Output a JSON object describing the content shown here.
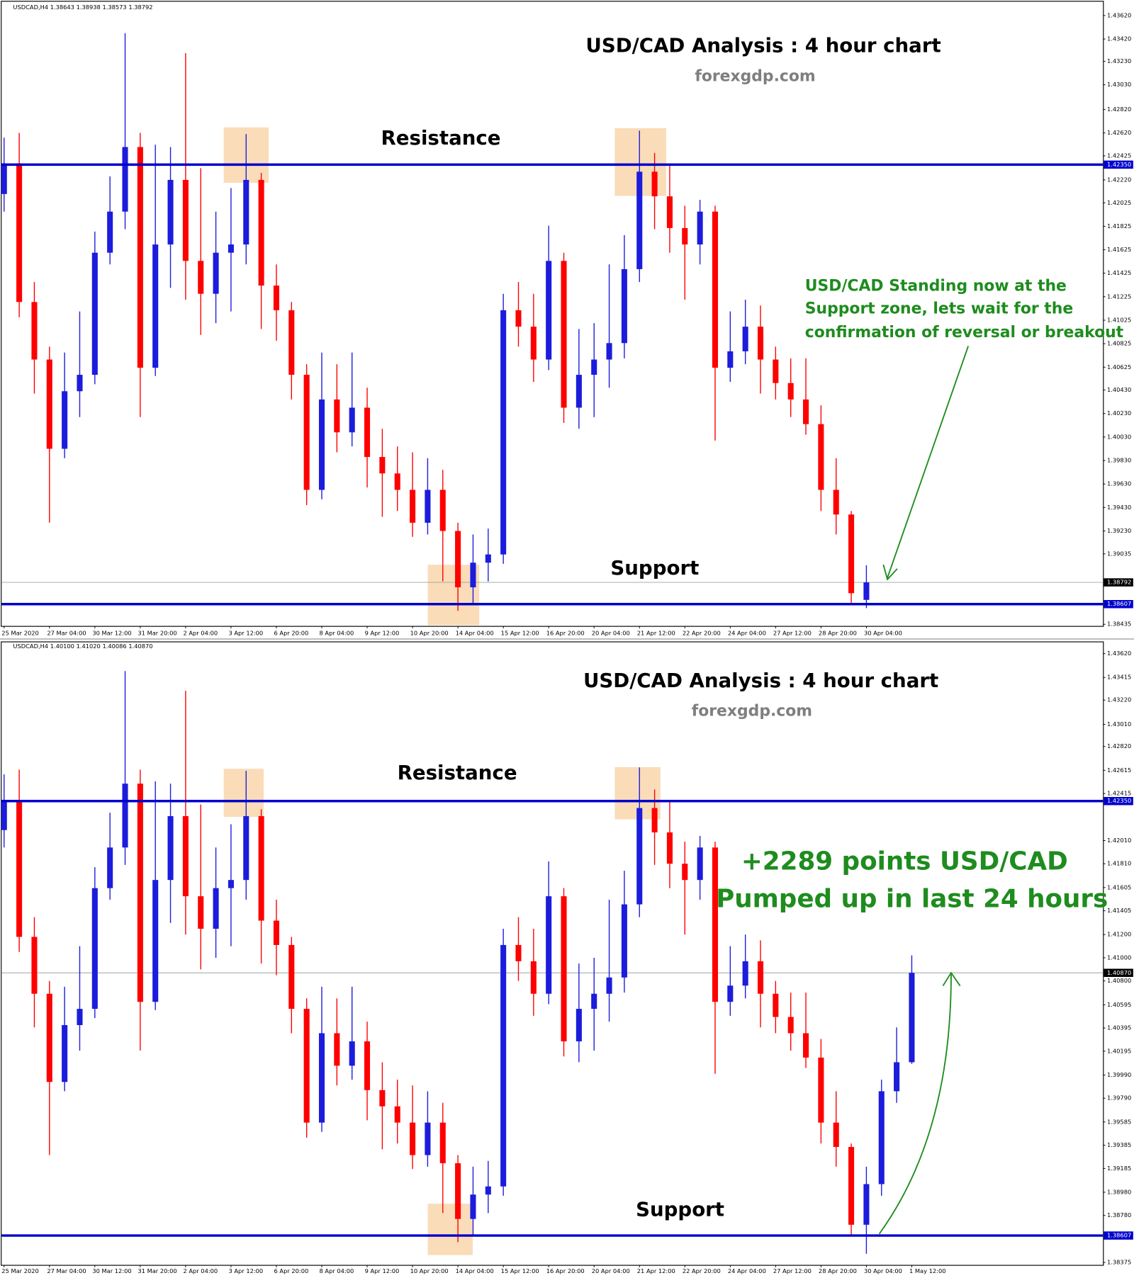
{
  "chart_data": [
    {
      "type": "candlestick",
      "header": "USDCAD,H4  1.38643 1.38938 1.38573 1.38792",
      "title": "USD/CAD Analysis : 4 hour chart",
      "subtitle": "forexgdp.com",
      "resistance_label": "Resistance",
      "support_label": "Support",
      "annotation": [
        "USD/CAD Standing now at the",
        "Support zone, lets wait for the",
        "confirmation of reversal or breakout"
      ],
      "up_color": "#1c1cdc",
      "down_color": "#ff0000",
      "level_color": "#0000cc",
      "ylim": [
        1.38421,
        1.43738
      ],
      "yticks": [
        {
          "value": 1.4362,
          "label": "1.43620"
        },
        {
          "value": 1.4342,
          "label": "1.43420"
        },
        {
          "value": 1.4323,
          "label": "1.43230"
        },
        {
          "value": 1.4303,
          "label": "1.43030"
        },
        {
          "value": 1.4282,
          "label": "1.42820"
        },
        {
          "value": 1.4262,
          "label": "1.42620"
        },
        1.42425,
        {
          "value": 1.4222,
          "label": "1.42220"
        },
        1.42025,
        1.41825,
        1.41625,
        1.41425,
        1.41225,
        1.41025,
        1.40825,
        1.40625,
        {
          "value": 1.4043,
          "label": "1.40430"
        },
        {
          "value": 1.4023,
          "label": "1.40230"
        },
        {
          "value": 1.4003,
          "label": "1.40030"
        },
        {
          "value": 1.3983,
          "label": "1.39830"
        },
        {
          "value": 1.3963,
          "label": "1.39630"
        },
        {
          "value": 1.3943,
          "label": "1.39430"
        },
        {
          "value": 1.3923,
          "label": "1.39230"
        },
        1.39035,
        1.38435
      ],
      "levels": [
        {
          "value": 1.4235,
          "label": "1.42350"
        },
        {
          "value": 1.38607,
          "label": "1.38607"
        }
      ],
      "price_line": {
        "value": 1.38792,
        "label": "1.38792"
      },
      "categories": [
        "25 Mar 2020",
        null,
        null,
        "27 Mar 04:00",
        null,
        null,
        "30 Mar 12:00",
        null,
        null,
        "31 Mar 20:00",
        null,
        null,
        "2 Apr 04:00",
        null,
        null,
        "3 Apr 12:00",
        null,
        null,
        "6 Apr 20:00",
        null,
        null,
        "8 Apr 04:00",
        null,
        null,
        "9 Apr 12:00",
        null,
        null,
        "10 Apr 20:00",
        null,
        null,
        "14 Apr 04:00",
        null,
        null,
        "15 Apr 12:00",
        null,
        null,
        "16 Apr 20:00",
        null,
        null,
        "20 Apr 04:00",
        null,
        null,
        "21 Apr 12:00",
        null,
        null,
        "22 Apr 20:00",
        null,
        null,
        "24 Apr 04:00",
        null,
        null,
        "27 Apr 12:00",
        null,
        null,
        "28 Apr 20:00",
        null,
        null,
        "30 Apr 04:00"
      ],
      "open": [
        1.421,
        1.4236,
        1.4118,
        1.4069,
        1.3993,
        1.4042,
        1.4056,
        1.416,
        1.4195,
        1.425,
        1.4062,
        1.4167,
        1.4222,
        1.4153,
        1.4125,
        1.416,
        1.4167,
        1.4222,
        1.4132,
        1.4111,
        1.4056,
        1.3958,
        1.4035,
        1.4007,
        1.4028,
        1.3986,
        1.3972,
        1.3958,
        1.393,
        1.3958,
        1.3923,
        1.3875,
        1.3896,
        1.3903,
        1.4111,
        1.4097,
        1.4069,
        1.4153,
        1.4028,
        1.4056,
        1.4069,
        1.4083,
        1.4146,
        1.4229,
        1.4208,
        1.4181,
        1.4167,
        1.4195,
        1.4062,
        1.4076,
        1.4097,
        1.4069,
        1.4049,
        1.4035,
        1.4014,
        1.3958,
        1.3937,
        1.38643
      ],
      "high": [
        1.4258,
        1.4262,
        1.4135,
        1.408,
        1.4075,
        1.411,
        1.4178,
        1.4225,
        1.4347,
        1.4262,
        1.4252,
        1.425,
        1.433,
        1.4232,
        1.4195,
        1.4215,
        1.4261,
        1.4228,
        1.415,
        1.4118,
        1.4065,
        1.4075,
        1.4065,
        1.4075,
        1.4045,
        1.401,
        1.3995,
        1.399,
        1.3985,
        1.3975,
        1.393,
        1.392,
        1.3925,
        1.4125,
        1.4135,
        1.4125,
        1.4183,
        1.416,
        1.4095,
        1.41,
        1.415,
        1.4175,
        1.4264,
        1.4245,
        1.4236,
        1.42,
        1.4205,
        1.42,
        1.411,
        1.412,
        1.4115,
        1.408,
        1.407,
        1.407,
        1.403,
        1.3985,
        1.394,
        1.38938
      ],
      "low": [
        1.4195,
        1.4105,
        1.404,
        1.393,
        1.3985,
        1.402,
        1.4048,
        1.415,
        1.418,
        1.402,
        1.4055,
        1.413,
        1.412,
        1.409,
        1.41,
        1.411,
        1.415,
        1.4095,
        1.4085,
        1.4035,
        1.3945,
        1.395,
        1.399,
        1.3995,
        1.396,
        1.3935,
        1.394,
        1.3918,
        1.392,
        1.388,
        1.3855,
        1.386,
        1.388,
        1.3895,
        1.408,
        1.405,
        1.406,
        1.4015,
        1.401,
        1.402,
        1.4045,
        1.407,
        1.4135,
        1.418,
        1.416,
        1.412,
        1.415,
        1.4,
        1.405,
        1.4065,
        1.404,
        1.4035,
        1.402,
        1.4005,
        1.394,
        1.392,
        1.386,
        1.38573
      ],
      "close": [
        1.4236,
        1.4118,
        1.4069,
        1.3993,
        1.4042,
        1.4056,
        1.416,
        1.4195,
        1.425,
        1.4062,
        1.4167,
        1.4222,
        1.4153,
        1.4125,
        1.416,
        1.4167,
        1.4222,
        1.4132,
        1.4111,
        1.4056,
        1.3958,
        1.4035,
        1.4007,
        1.4028,
        1.3986,
        1.3972,
        1.3958,
        1.393,
        1.3958,
        1.3923,
        1.3875,
        1.3896,
        1.3903,
        1.4111,
        1.4097,
        1.4069,
        1.4153,
        1.4028,
        1.4056,
        1.4069,
        1.4083,
        1.4146,
        1.4229,
        1.4208,
        1.4181,
        1.4167,
        1.4195,
        1.4062,
        1.4076,
        1.4097,
        1.4069,
        1.4049,
        1.4035,
        1.4014,
        1.3958,
        1.3937,
        1.387,
        1.38792
      ]
    },
    {
      "type": "candlestick",
      "header": "USDCAD,H4  1.40100 1.41020 1.40086 1.40870",
      "title": "USD/CAD Analysis : 4 hour chart",
      "subtitle": "forexgdp.com",
      "resistance_label": "Resistance",
      "support_label": "Support",
      "annotation": [
        "+2289 points USD/CAD",
        "Pumped up in last 24 hours"
      ],
      "up_color": "#1c1cdc",
      "down_color": "#ff0000",
      "level_color": "#0000cc",
      "ylim": [
        1.38354,
        1.43718
      ],
      "yticks": [
        {
          "value": 1.4362,
          "label": "1.43620"
        },
        1.43415,
        {
          "value": 1.4322,
          "label": "1.43220"
        },
        {
          "value": 1.4301,
          "label": "1.43010"
        },
        {
          "value": 1.4282,
          "label": "1.42820"
        },
        1.42615,
        1.42415,
        {
          "value": 1.4201,
          "label": "1.42010"
        },
        {
          "value": 1.4181,
          "label": "1.41810"
        },
        1.41605,
        1.41405,
        {
          "value": 1.412,
          "label": "1.41200"
        },
        {
          "value": 1.41,
          "label": "1.41000"
        },
        {
          "value": 1.408,
          "label": "1.40800"
        },
        1.40595,
        1.40395,
        1.40195,
        {
          "value": 1.3999,
          "label": "1.39990"
        },
        {
          "value": 1.3979,
          "label": "1.39790"
        },
        1.39585,
        1.39385,
        1.39185,
        {
          "value": 1.3898,
          "label": "1.38980"
        },
        {
          "value": 1.3878,
          "label": "1.38780"
        },
        1.38375
      ],
      "levels": [
        {
          "value": 1.4235,
          "label": "1.42350"
        },
        {
          "value": 1.38607,
          "label": "1.38607"
        }
      ],
      "price_line": {
        "value": 1.4087,
        "label": "1.40870"
      },
      "categories": [
        "25 Mar 2020",
        null,
        null,
        "27 Mar 04:00",
        null,
        null,
        "30 Mar 12:00",
        null,
        null,
        "31 Mar 20:00",
        null,
        null,
        "2 Apr 04:00",
        null,
        null,
        "3 Apr 12:00",
        null,
        null,
        "6 Apr 20:00",
        null,
        null,
        "8 Apr 04:00",
        null,
        null,
        "9 Apr 12:00",
        null,
        null,
        "10 Apr 20:00",
        null,
        null,
        "14 Apr 04:00",
        null,
        null,
        "15 Apr 12:00",
        null,
        null,
        "16 Apr 20:00",
        null,
        null,
        "20 Apr 04:00",
        null,
        null,
        "21 Apr 12:00",
        null,
        null,
        "22 Apr 20:00",
        null,
        null,
        "24 Apr 04:00",
        null,
        null,
        "27 Apr 12:00",
        null,
        null,
        "28 Apr 20:00",
        null,
        null,
        "30 Apr 04:00",
        null,
        null,
        "1 May 12:00"
      ],
      "open": [
        1.421,
        1.4236,
        1.4118,
        1.4069,
        1.3993,
        1.4042,
        1.4056,
        1.416,
        1.4195,
        1.425,
        1.4062,
        1.4167,
        1.4222,
        1.4153,
        1.4125,
        1.416,
        1.4167,
        1.4222,
        1.4132,
        1.4111,
        1.4056,
        1.3958,
        1.4035,
        1.4007,
        1.4028,
        1.3986,
        1.3972,
        1.3958,
        1.393,
        1.3958,
        1.3923,
        1.3875,
        1.3896,
        1.3903,
        1.4111,
        1.4097,
        1.4069,
        1.4153,
        1.4028,
        1.4056,
        1.4069,
        1.4083,
        1.4146,
        1.4229,
        1.4208,
        1.4181,
        1.4167,
        1.4195,
        1.4062,
        1.4076,
        1.4097,
        1.4069,
        1.4049,
        1.4035,
        1.4014,
        1.3958,
        1.3937,
        1.387,
        1.3905,
        1.3985,
        1.401
      ],
      "high": [
        1.4258,
        1.4262,
        1.4135,
        1.408,
        1.4075,
        1.411,
        1.4178,
        1.4225,
        1.4347,
        1.4262,
        1.4252,
        1.425,
        1.433,
        1.4232,
        1.4195,
        1.4215,
        1.4261,
        1.4228,
        1.415,
        1.4118,
        1.4065,
        1.4075,
        1.4065,
        1.4075,
        1.4045,
        1.401,
        1.3995,
        1.399,
        1.3985,
        1.3975,
        1.393,
        1.392,
        1.3925,
        1.4125,
        1.4135,
        1.4125,
        1.4183,
        1.416,
        1.4095,
        1.41,
        1.415,
        1.4175,
        1.4264,
        1.4245,
        1.4236,
        1.42,
        1.4205,
        1.42,
        1.411,
        1.412,
        1.4115,
        1.408,
        1.407,
        1.407,
        1.403,
        1.3985,
        1.394,
        1.392,
        1.3995,
        1.404,
        1.4102
      ],
      "low": [
        1.4195,
        1.4105,
        1.404,
        1.393,
        1.3985,
        1.402,
        1.4048,
        1.415,
        1.418,
        1.402,
        1.4055,
        1.413,
        1.412,
        1.409,
        1.41,
        1.411,
        1.415,
        1.4095,
        1.4085,
        1.4035,
        1.3945,
        1.395,
        1.399,
        1.3995,
        1.396,
        1.3935,
        1.394,
        1.3918,
        1.392,
        1.388,
        1.3855,
        1.386,
        1.388,
        1.3895,
        1.408,
        1.405,
        1.406,
        1.4015,
        1.401,
        1.402,
        1.4045,
        1.407,
        1.4135,
        1.418,
        1.416,
        1.412,
        1.415,
        1.4,
        1.405,
        1.4065,
        1.404,
        1.4035,
        1.402,
        1.4005,
        1.394,
        1.392,
        1.386,
        1.3845,
        1.3895,
        1.3975,
        1.40086
      ],
      "close": [
        1.4236,
        1.4118,
        1.4069,
        1.3993,
        1.4042,
        1.4056,
        1.416,
        1.4195,
        1.425,
        1.4062,
        1.4167,
        1.4222,
        1.4153,
        1.4125,
        1.416,
        1.4167,
        1.4222,
        1.4132,
        1.4111,
        1.4056,
        1.3958,
        1.4035,
        1.4007,
        1.4028,
        1.3986,
        1.3972,
        1.3958,
        1.393,
        1.3958,
        1.3923,
        1.3875,
        1.3896,
        1.3903,
        1.4111,
        1.4097,
        1.4069,
        1.4153,
        1.4028,
        1.4056,
        1.4069,
        1.4083,
        1.4146,
        1.4229,
        1.4208,
        1.4181,
        1.4167,
        1.4195,
        1.4062,
        1.4076,
        1.4097,
        1.4069,
        1.4049,
        1.4035,
        1.4014,
        1.3958,
        1.3937,
        1.387,
        1.3905,
        1.3985,
        1.401,
        1.4087
      ]
    }
  ]
}
